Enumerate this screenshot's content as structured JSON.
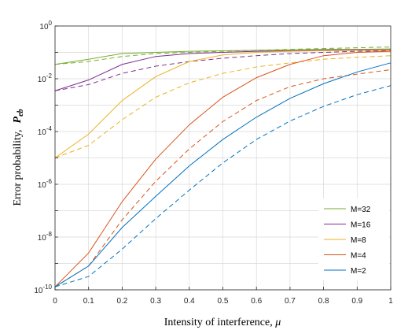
{
  "chart_data": {
    "type": "line",
    "xlabel": "Intensity of interference,",
    "xlabel_symbol": "μ",
    "ylabel": "Error probability,",
    "ylabel_symbol": "P",
    "ylabel_subscript": "eb",
    "xlim": [
      0,
      1
    ],
    "ylim_log10": [
      -10,
      0
    ],
    "yscale": "log",
    "grid": true,
    "legend_position": "bottom-right",
    "x": [
      0,
      0.1,
      0.2,
      0.3,
      0.4,
      0.5,
      0.6,
      0.7,
      0.8,
      0.9,
      1.0
    ],
    "xticks": [
      "0",
      "0.1",
      "0.2",
      "0.3",
      "0.4",
      "0.5",
      "0.6",
      "0.7",
      "0.8",
      "0.9",
      "1"
    ],
    "yticks": [
      {
        "base": "10",
        "exp": "0"
      },
      {
        "base": "10",
        "exp": "-2"
      },
      {
        "base": "10",
        "exp": "-4"
      },
      {
        "base": "10",
        "exp": "-6"
      },
      {
        "base": "10",
        "exp": "-8"
      },
      {
        "base": "10",
        "exp": "-10"
      }
    ],
    "series": [
      {
        "name": "M=32",
        "color": "#77AC30",
        "style": "solid",
        "values": [
          0.035,
          0.055,
          0.09,
          0.1,
          0.11,
          0.115,
          0.12,
          0.125,
          0.13,
          0.13,
          0.135
        ]
      },
      {
        "name": "M=32",
        "color": "#77AC30",
        "style": "dashed",
        "values": [
          0.035,
          0.045,
          0.07,
          0.09,
          0.1,
          0.11,
          0.12,
          0.13,
          0.14,
          0.15,
          0.16
        ],
        "legend": false
      },
      {
        "name": "M=16",
        "color": "#7E2F8E",
        "style": "solid",
        "values": [
          0.0035,
          0.009,
          0.035,
          0.07,
          0.09,
          0.1,
          0.11,
          0.115,
          0.12,
          0.125,
          0.125
        ]
      },
      {
        "name": "M=16",
        "color": "#7E2F8E",
        "style": "dashed",
        "values": [
          0.0035,
          0.006,
          0.016,
          0.03,
          0.045,
          0.06,
          0.075,
          0.09,
          0.1,
          0.11,
          0.115
        ],
        "legend": false
      },
      {
        "name": "M=8",
        "color": "#EDB120",
        "style": "solid",
        "values": [
          1e-05,
          8e-05,
          0.0015,
          0.012,
          0.045,
          0.08,
          0.1,
          0.11,
          0.115,
          0.12,
          0.12
        ]
      },
      {
        "name": "M=8",
        "color": "#EDB120",
        "style": "dashed",
        "values": [
          1e-05,
          3e-05,
          0.00028,
          0.002,
          0.007,
          0.016,
          0.028,
          0.04,
          0.055,
          0.065,
          0.075
        ],
        "legend": false
      },
      {
        "name": "M=4",
        "color": "#D95319",
        "style": "solid",
        "values": [
          1.3e-10,
          2.5e-09,
          2.2e-07,
          9e-06,
          0.00018,
          0.002,
          0.011,
          0.035,
          0.075,
          0.1,
          0.11
        ]
      },
      {
        "name": "M=4",
        "color": "#D95319",
        "style": "dashed",
        "values": [
          1.3e-10,
          8e-10,
          4.5e-08,
          1.3e-06,
          2.2e-05,
          0.00024,
          0.0015,
          0.005,
          0.01,
          0.015,
          0.022
        ],
        "legend": false
      },
      {
        "name": "M=2",
        "color": "#0072BD",
        "style": "solid",
        "values": [
          1.3e-10,
          8e-10,
          2.3e-08,
          3.5e-07,
          5e-06,
          5e-05,
          0.00035,
          0.0018,
          0.0065,
          0.018,
          0.04
        ]
      },
      {
        "name": "M=2",
        "color": "#0072BD",
        "style": "dashed",
        "values": [
          1.3e-10,
          3.2e-10,
          3.5e-09,
          5e-08,
          6e-07,
          6.5e-06,
          5e-05,
          0.00025,
          0.0009,
          0.0025,
          0.0055
        ],
        "legend": false
      }
    ],
    "legend_entries": [
      "M=32",
      "M=16",
      "M=8",
      "M=4",
      "M=2"
    ],
    "legend_colors": [
      "#77AC30",
      "#7E2F8E",
      "#EDB120",
      "#D95319",
      "#0072BD"
    ]
  }
}
